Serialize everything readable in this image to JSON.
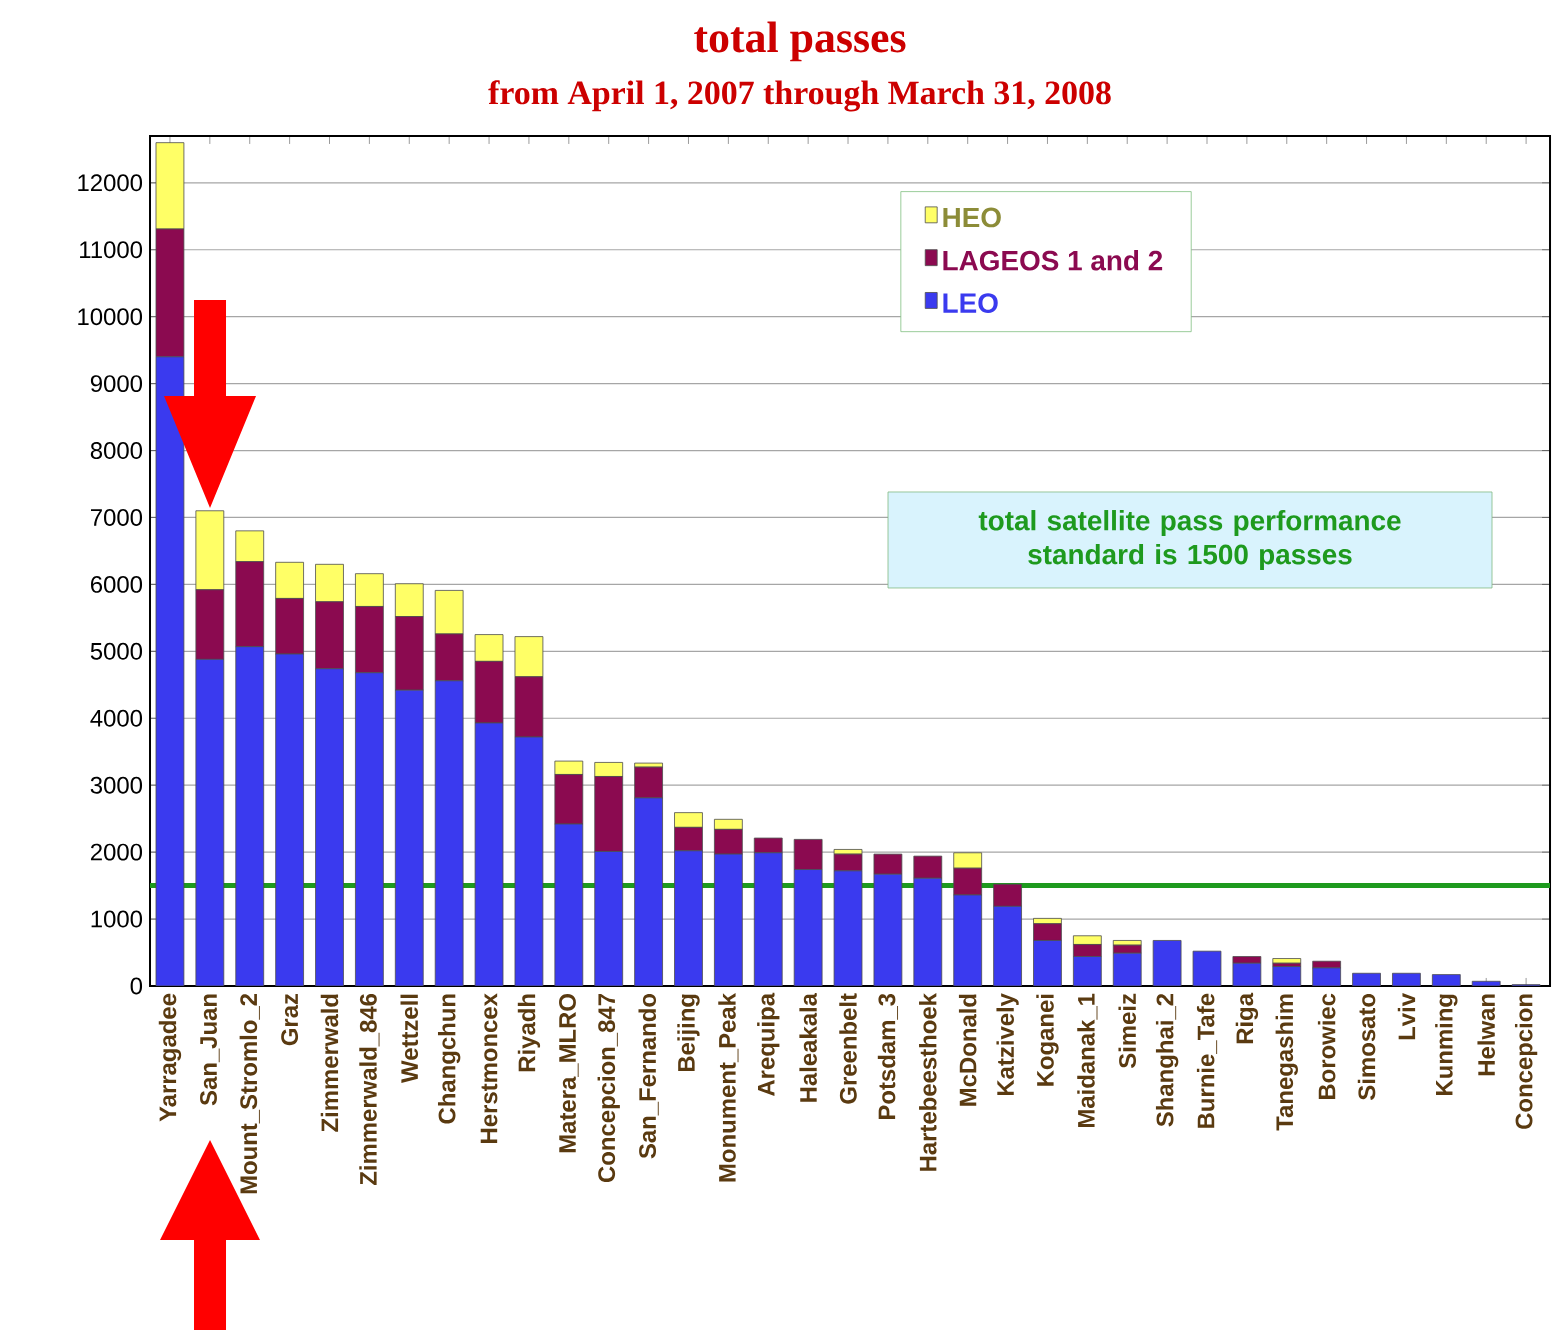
{
  "chart_data": {
    "type": "bar",
    "title": "total passes",
    "subtitle": "from April 1, 2007 through March 31, 2008",
    "categories": [
      "Yarragadee",
      "San_Juan",
      "Mount_Stromlo_2",
      "Graz",
      "Zimmerwald",
      "Zimmerwald_846",
      "Wettzell",
      "Changchun",
      "Herstmoncex",
      "Riyadh",
      "Matera_MLRO",
      "Concepcion_847",
      "San_Fernando",
      "Beijing",
      "Monument_Peak",
      "Arequipa",
      "Haleakala",
      "Greenbelt",
      "Potsdam_3",
      "Hartebeesthoek",
      "McDonald",
      "Katzively",
      "Koganei",
      "Maidanak_1",
      "Simeiz",
      "Shanghai_2",
      "Burnie_Tafe",
      "Riga",
      "Tanegashim",
      "Borowiec",
      "Simosato",
      "Lviv",
      "Kunming",
      "Helwan",
      "Concepcion"
    ],
    "stacked": true,
    "series": [
      {
        "name": "LEO",
        "color": "#3a3aef",
        "values": [
          9400,
          4880,
          5070,
          4960,
          4740,
          4680,
          4420,
          4560,
          3930,
          3720,
          2420,
          2010,
          2810,
          2020,
          1970,
          1990,
          1740,
          1720,
          1670,
          1610,
          1360,
          1190,
          680,
          440,
          490,
          680,
          520,
          340,
          290,
          270,
          190,
          190,
          170,
          70,
          20
        ]
      },
      {
        "name": "LAGEOS 1 and 2",
        "color": "#8b0a50",
        "values": [
          1910,
          1040,
          1270,
          830,
          1000,
          990,
          1100,
          700,
          920,
          900,
          740,
          1120,
          460,
          350,
          370,
          220,
          450,
          250,
          300,
          330,
          400,
          330,
          250,
          180,
          120,
          0,
          0,
          100,
          50,
          100,
          0,
          0,
          0,
          0,
          0
        ]
      },
      {
        "name": "HEO",
        "color": "#ffff66",
        "values": [
          1290,
          1180,
          460,
          540,
          560,
          490,
          490,
          650,
          400,
          600,
          200,
          210,
          60,
          220,
          150,
          0,
          0,
          70,
          0,
          0,
          230,
          0,
          80,
          130,
          70,
          0,
          0,
          0,
          70,
          0,
          0,
          0,
          0,
          0,
          0
        ]
      }
    ],
    "ylim": [
      0,
      12700
    ],
    "yticks": [
      0,
      1000,
      2000,
      3000,
      4000,
      5000,
      6000,
      7000,
      8000,
      9000,
      10000,
      11000,
      12000
    ],
    "grid": "y",
    "legend": "top right",
    "ref_lines": [
      {
        "axis": "y",
        "value": 1500,
        "label": "total satellite pass performance standard is 1500 passes",
        "color": "#1e9a1e"
      }
    ]
  }
}
